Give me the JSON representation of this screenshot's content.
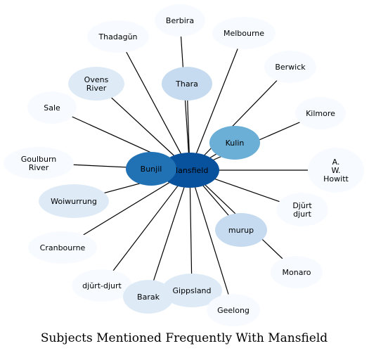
{
  "title": "Subjects Mentioned Frequently With Mansfield",
  "center": {
    "label": "Mansfield",
    "color": "#08519c"
  },
  "nodes": [
    {
      "label": "Berbira",
      "color": "#f7fbff"
    },
    {
      "label": "Thadagŭn",
      "color": "#f7fbff"
    },
    {
      "label": "Melbourne",
      "color": "#f7fbff"
    },
    {
      "label": "Thara",
      "color": "#c6dbef"
    },
    {
      "label": "Berwick",
      "color": "#f7fbff"
    },
    {
      "label": "Ovens River",
      "color": "#deebf7"
    },
    {
      "label": "Sale",
      "color": "#f7fbff"
    },
    {
      "label": "Kilmore",
      "color": "#f7fbff"
    },
    {
      "label": "Kulin",
      "color": "#6baed6"
    },
    {
      "label": "A. W. Howitt",
      "color": "#f7fbff"
    },
    {
      "label": "Goulburn River",
      "color": "#f7fbff"
    },
    {
      "label": "Bunjil",
      "color": "#2171b5"
    },
    {
      "label": "Woiwurrung",
      "color": "#deebf7"
    },
    {
      "label": "Djŭrt djurt",
      "color": "#f7fbff"
    },
    {
      "label": "murup",
      "color": "#c6dbef"
    },
    {
      "label": "Cranbourne",
      "color": "#f7fbff"
    },
    {
      "label": "Monaro",
      "color": "#f7fbff"
    },
    {
      "label": "djŭrt-djurt",
      "color": "#f7fbff"
    },
    {
      "label": "Gippsland",
      "color": "#deebf7"
    },
    {
      "label": "Barak",
      "color": "#deebf7"
    },
    {
      "label": "Geelong",
      "color": "#f7fbff"
    }
  ]
}
